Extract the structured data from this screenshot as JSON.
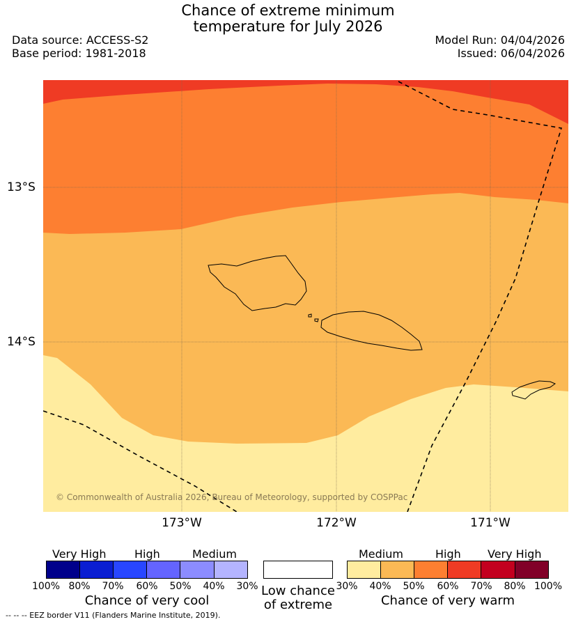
{
  "header": {
    "title_line1": "Chance of extreme minimum",
    "title_line2": "temperature for July 2026",
    "data_source": "Data source: ACCESS-S2",
    "base_period": "Base period: 1981-2018",
    "model_run": "Model Run: 04/04/2026",
    "issued": "Issued: 06/04/2026"
  },
  "map": {
    "lat_labels": [
      "13°S",
      "14°S"
    ],
    "lon_labels": [
      "173°W",
      "172°W",
      "171°W"
    ],
    "copyright": "© Commonwealth of Australia 2026, Bureau of Meteorology, supported by COSPPac"
  },
  "legend": {
    "cool": {
      "levels": [
        "Very High",
        "High",
        "Medium"
      ],
      "ticks": [
        "100%",
        "80%",
        "70%",
        "60%",
        "50%",
        "40%",
        "30%"
      ],
      "title": "Chance of very cool",
      "colors": [
        "#00008b",
        "#0a1ed2",
        "#2846ff",
        "#6464ff",
        "#8c8cff",
        "#b4b4ff"
      ]
    },
    "low": {
      "line1": "Low chance",
      "line2": "of extreme"
    },
    "warm": {
      "levels": [
        "Medium",
        "High",
        "Very High"
      ],
      "ticks": [
        "30%",
        "40%",
        "50%",
        "60%",
        "70%",
        "80%",
        "100%"
      ],
      "title": "Chance of very warm",
      "colors": [
        "#ffec9f",
        "#fbb955",
        "#fd7f31",
        "#ef3b24",
        "#c3001f",
        "#810028"
      ]
    }
  },
  "footnote": "--  --  -- EEZ border V11 (Flanders Marine Institute, 2019)."
}
